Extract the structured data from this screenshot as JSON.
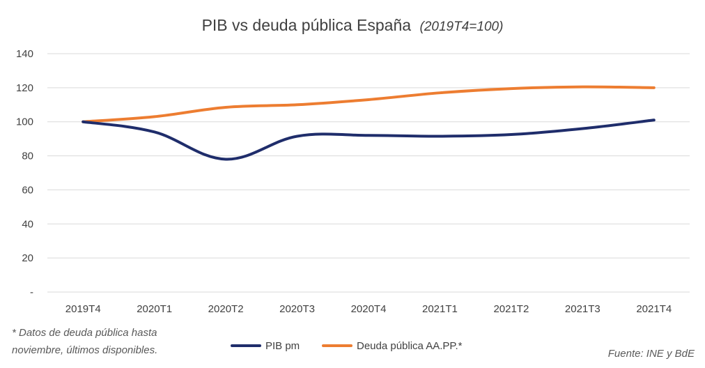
{
  "chart_data": {
    "type": "line",
    "title": "PIB vs deuda pública España",
    "subtitle": "(2019T4=100)",
    "categories": [
      "2019T4",
      "2020T1",
      "2020T2",
      "2020T3",
      "2020T4",
      "2021T1",
      "2021T2",
      "2021T3",
      "2021T4"
    ],
    "series": [
      {
        "name": "PIB pm",
        "color": "#1f2d6b",
        "values": [
          100,
          94,
          78,
          91.5,
          92,
          91.5,
          92.5,
          96,
          101
        ]
      },
      {
        "name": "Deuda pública AA.PP.*",
        "color": "#ed7d31",
        "values": [
          100,
          103,
          108.5,
          110,
          113,
          117,
          119.5,
          120.5,
          120
        ]
      }
    ],
    "ylim": [
      0,
      140
    ],
    "yticks": [
      0,
      20,
      40,
      60,
      80,
      100,
      120,
      140
    ],
    "ytick_labels": [
      "-",
      "20",
      "40",
      "60",
      "80",
      "100",
      "120",
      "140"
    ],
    "grid": true,
    "legend_position": "bottom-center",
    "xlabel": "",
    "ylabel": ""
  },
  "footnote": {
    "line1": "* Datos de deuda pública hasta",
    "line2": "noviembre, últimos disponibles."
  },
  "source": "Fuente: INE y BdE"
}
